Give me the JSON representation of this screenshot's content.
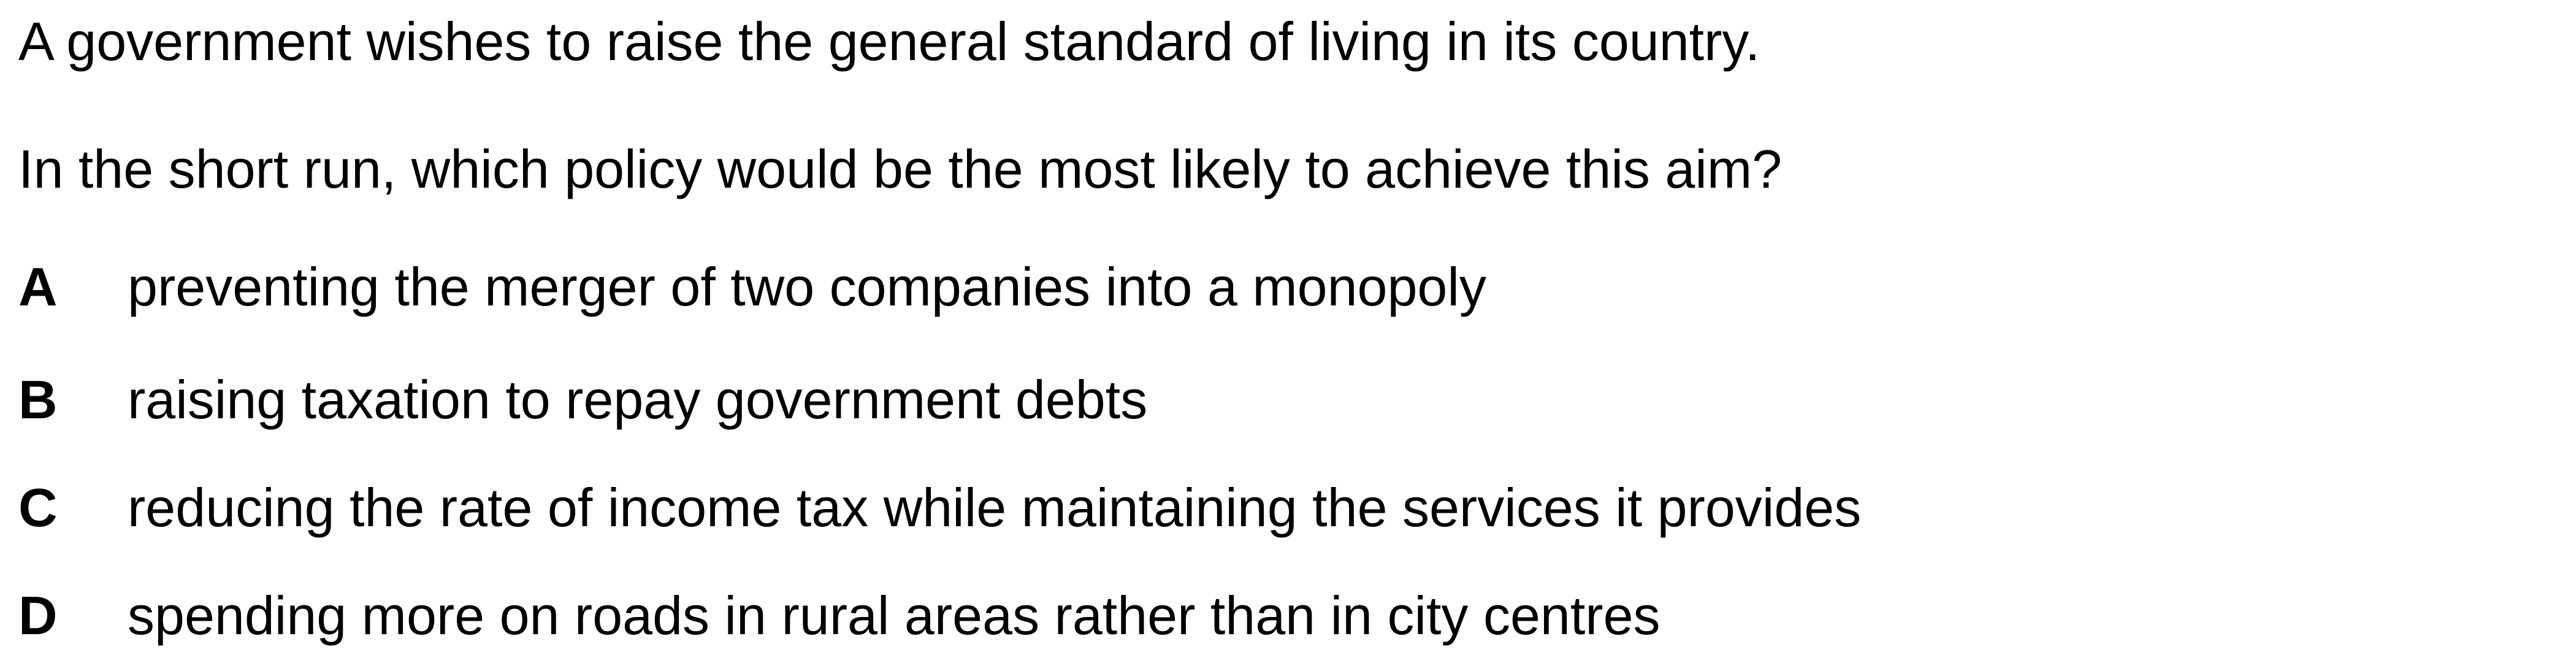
{
  "question": {
    "stem": "A government wishes to raise the general standard of living in its country.",
    "prompt": "In the short run, which policy would be the most likely to achieve this aim?",
    "options": [
      {
        "letter": "A",
        "text": "preventing the merger of two companies into a monopoly"
      },
      {
        "letter": "B",
        "text": "raising taxation to repay government debts"
      },
      {
        "letter": "C",
        "text": "reducing the rate of income tax while maintaining the services it provides"
      },
      {
        "letter": "D",
        "text": "spending more on roads in rural areas rather than in city centres"
      }
    ]
  }
}
